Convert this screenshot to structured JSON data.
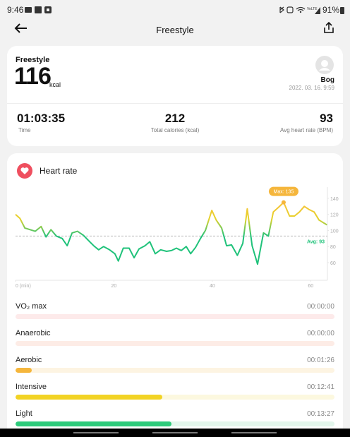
{
  "status_bar": {
    "time": "9:46",
    "battery": "91%"
  },
  "header": {
    "title": "Freestyle"
  },
  "summary": {
    "label": "Freestyle",
    "calories": "116",
    "unit": "kcal",
    "user": "Bog",
    "date": "2022. 03. 16. 9:59"
  },
  "stats": [
    {
      "value": "01:03:35",
      "label": "Time"
    },
    {
      "value": "212",
      "label": "Total calories (kcal)"
    },
    {
      "value": "93",
      "label": "Avg heart rate (BPM)"
    }
  ],
  "heart_rate": {
    "title": "Heart rate",
    "chart_data": {
      "type": "line",
      "x": [
        0,
        0.9,
        1.9,
        4.0,
        5.2,
        6.2,
        7.2,
        8.3,
        9.5,
        10.5,
        11.5,
        12.6,
        13.8,
        14.9,
        15.9,
        16.9,
        17.9,
        19.1,
        20.2,
        20.9,
        21.9,
        23.1,
        24.1,
        25.1,
        26.3,
        27.3,
        28.4,
        29.5,
        30.7,
        31.7,
        32.7,
        33.7,
        34.7,
        35.6,
        36.6,
        37.6,
        38.6,
        39.9,
        40.8,
        41.9,
        42.9,
        43.9,
        45.1,
        46.2,
        47.1,
        48.1,
        49.2,
        50.4,
        51.4,
        52.4,
        53.5,
        54.5,
        55.7,
        56.7,
        57.7,
        58.7,
        59.7,
        60.7,
        61.7,
        63.3
      ],
      "values": [
        120,
        115,
        103,
        99,
        105,
        92,
        101,
        93,
        90,
        81,
        97,
        99,
        94,
        87,
        81,
        76,
        80,
        76,
        71,
        62,
        78,
        78,
        66,
        77,
        81,
        86,
        71,
        76,
        74,
        75,
        78,
        75,
        80,
        71,
        79,
        90,
        100,
        125,
        113,
        103,
        81,
        82,
        69,
        84,
        127,
        81,
        58,
        97,
        93,
        123,
        129,
        135,
        118,
        118,
        123,
        130,
        126,
        123,
        113,
        107
      ],
      "xlim": [
        0,
        63.4
      ],
      "ylim": [
        38,
        154
      ],
      "xticks": [
        {
          "value": 0,
          "label": "0 (min)"
        },
        20,
        40,
        60
      ],
      "yticks": [
        60,
        80,
        100,
        120,
        140
      ],
      "max": {
        "x": 54.5,
        "value": 135,
        "label": "Max: 135"
      },
      "avg": {
        "value": 93,
        "label": "Avg: 93"
      }
    }
  },
  "zones": [
    {
      "name": "VO₂ max",
      "time": "00:00:00",
      "bar": 0,
      "color": "#f07a7a",
      "track": "#fdeaea"
    },
    {
      "name": "Anaerobic",
      "time": "00:00:00",
      "bar": 0,
      "color": "#f59a6a",
      "track": "#fdece6"
    },
    {
      "name": "Aerobic",
      "time": "00:01:26",
      "bar": 5,
      "color": "#f5b63c",
      "track": "#fdf4e2"
    },
    {
      "name": "Intensive",
      "time": "00:12:41",
      "bar": 46,
      "color": "#f2d324",
      "track": "#fcf8df"
    },
    {
      "name": "Light",
      "time": "00:13:27",
      "bar": 49,
      "color": "#2ecb7b",
      "track": "#e3f6ec"
    }
  ]
}
